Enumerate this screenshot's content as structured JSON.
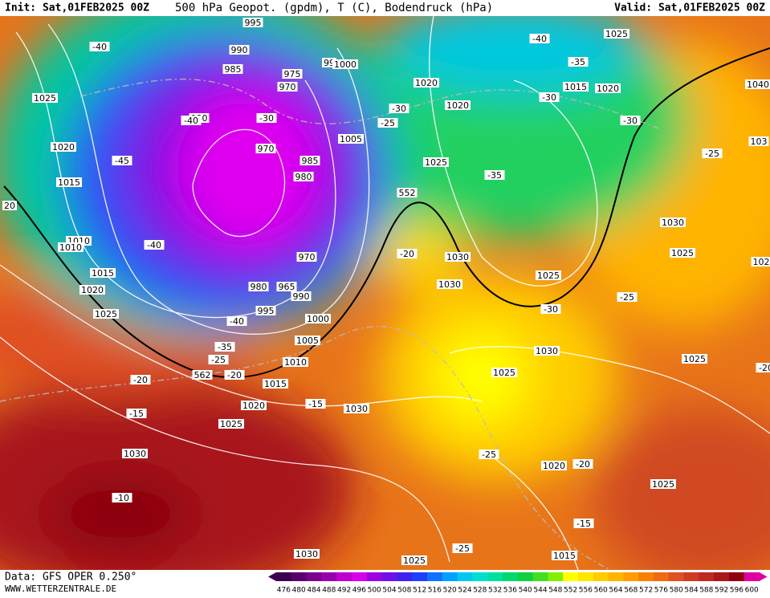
{
  "header": {
    "init": "Init: Sat,01FEB2025 00Z",
    "title": "500 hPa Geopot. (gpdm), T (C), Bodendruck (hPa)",
    "valid": "Valid: Sat,01FEB2025 00Z"
  },
  "footer": {
    "data": "Data: GFS OPER 0.250°",
    "site": "WWW.WETTERZENTRALE.DE"
  },
  "colorbar": {
    "labels": [
      476,
      480,
      484,
      488,
      492,
      496,
      500,
      504,
      508,
      512,
      516,
      520,
      524,
      528,
      532,
      536,
      540,
      544,
      548,
      552,
      556,
      560,
      564,
      568,
      572,
      576,
      580,
      584,
      588,
      592,
      596,
      600
    ],
    "colors": [
      "#3d0050",
      "#5a006e",
      "#7a0090",
      "#9a00b0",
      "#c000d0",
      "#d800e8",
      "#a000e0",
      "#7010e8",
      "#4020f0",
      "#2040f8",
      "#1070ff",
      "#00a0ff",
      "#00c8f0",
      "#00e0d0",
      "#00e0a0",
      "#00d870",
      "#10d040",
      "#40e020",
      "#80f000",
      "#ffff00",
      "#ffe600",
      "#ffcc00",
      "#ffb400",
      "#ff9c00",
      "#f88000",
      "#f06a10",
      "#e05020",
      "#d03a20",
      "#c02820",
      "#a81818",
      "#900010",
      "#e000a0"
    ]
  },
  "map_labels": [
    "995",
    "990",
    "985",
    "975",
    "970",
    "99",
    "1000",
    "980",
    "-30",
    "-40",
    "970",
    "985",
    "980",
    "1005",
    "970",
    "980",
    "965",
    "990",
    "995",
    "-40",
    "1000",
    "1005",
    "-35",
    "-25",
    "1010",
    "562",
    "-20",
    "1015",
    "1020",
    "-15",
    "1030",
    "1025",
    "-15",
    "-20",
    "1030",
    "-10",
    "1030",
    "1025",
    "-25",
    "1015",
    "-15",
    "1020",
    "-20",
    "-25",
    "1025",
    "1025",
    "1030",
    "-30",
    "-25",
    "1025",
    "-20",
    "1025",
    "1030",
    "1025",
    "1030",
    "1030",
    "-20",
    "552",
    "1025",
    "-35",
    "1020",
    "1020",
    "-30",
    "-25",
    "-30",
    "1020",
    "1015",
    "-30",
    "-35",
    "-40",
    "1025",
    "1040",
    "103",
    "-25",
    "102",
    "-40",
    "1025",
    "1020",
    "-45",
    "1015",
    "1010",
    "1010",
    "-40",
    "1015",
    "1020",
    "1025",
    "20"
  ]
}
